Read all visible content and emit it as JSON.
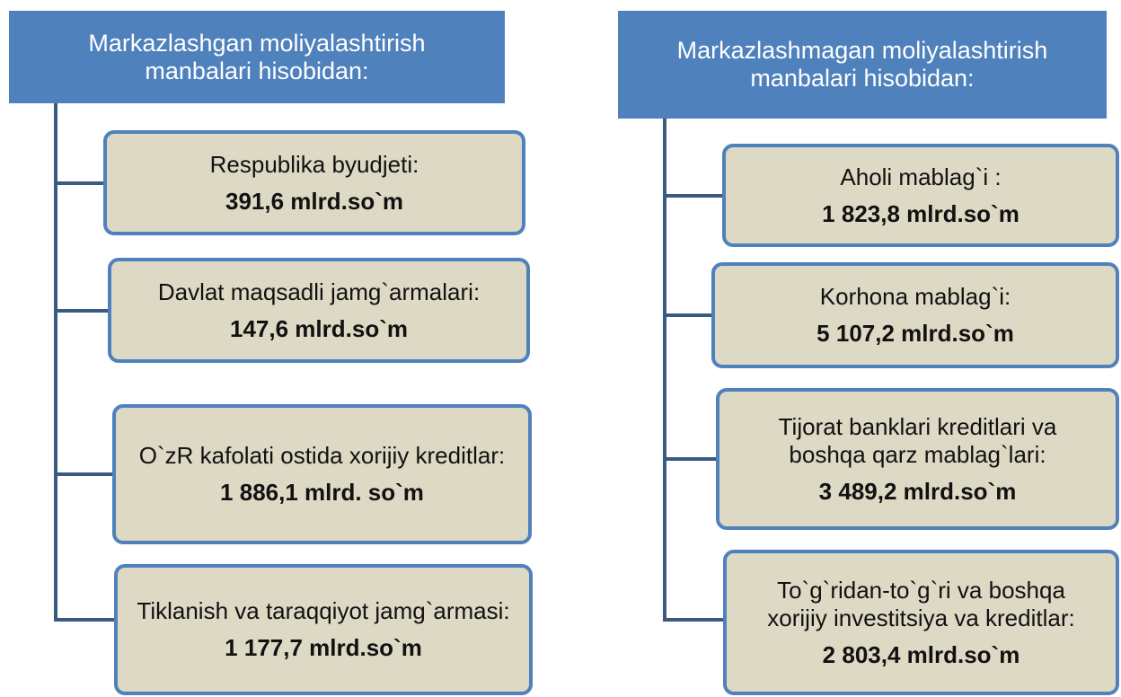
{
  "columns": [
    {
      "header": "Markazlashgan moliyalashtirish manbalari hisobidan:",
      "items": [
        {
          "label": "Respublika byudjeti:",
          "amount": "391,6 mlrd.so`m"
        },
        {
          "label": "Davlat maqsadli jamg`armalari:",
          "amount": "147,6 mlrd.so`m"
        },
        {
          "label": "O`zR kafolati ostida xorijiy kreditlar:",
          "amount": "1 886,1 mlrd. so`m"
        },
        {
          "label": "Tiklanish va taraqqiyot jamg`armasi:",
          "amount": "1 177,7 mlrd.so`m"
        }
      ]
    },
    {
      "header": "Markazlashmagan moliyalashtirish manbalari hisobidan:",
      "items": [
        {
          "label": "Aholi mablag`i :",
          "amount": "1 823,8 mlrd.so`m"
        },
        {
          "label": "Korhona mablag`i:",
          "amount": "5 107,2 mlrd.so`m"
        },
        {
          "label": "Tijorat banklari kreditlari va boshqa qarz mablag`lari:",
          "amount": "3 489,2 mlrd.so`m"
        },
        {
          "label": "To`g`ridan-to`g`ri va boshqa xorijiy investitsiya va kreditlar:",
          "amount": "2 803,4 mlrd.so`m"
        }
      ]
    }
  ]
}
